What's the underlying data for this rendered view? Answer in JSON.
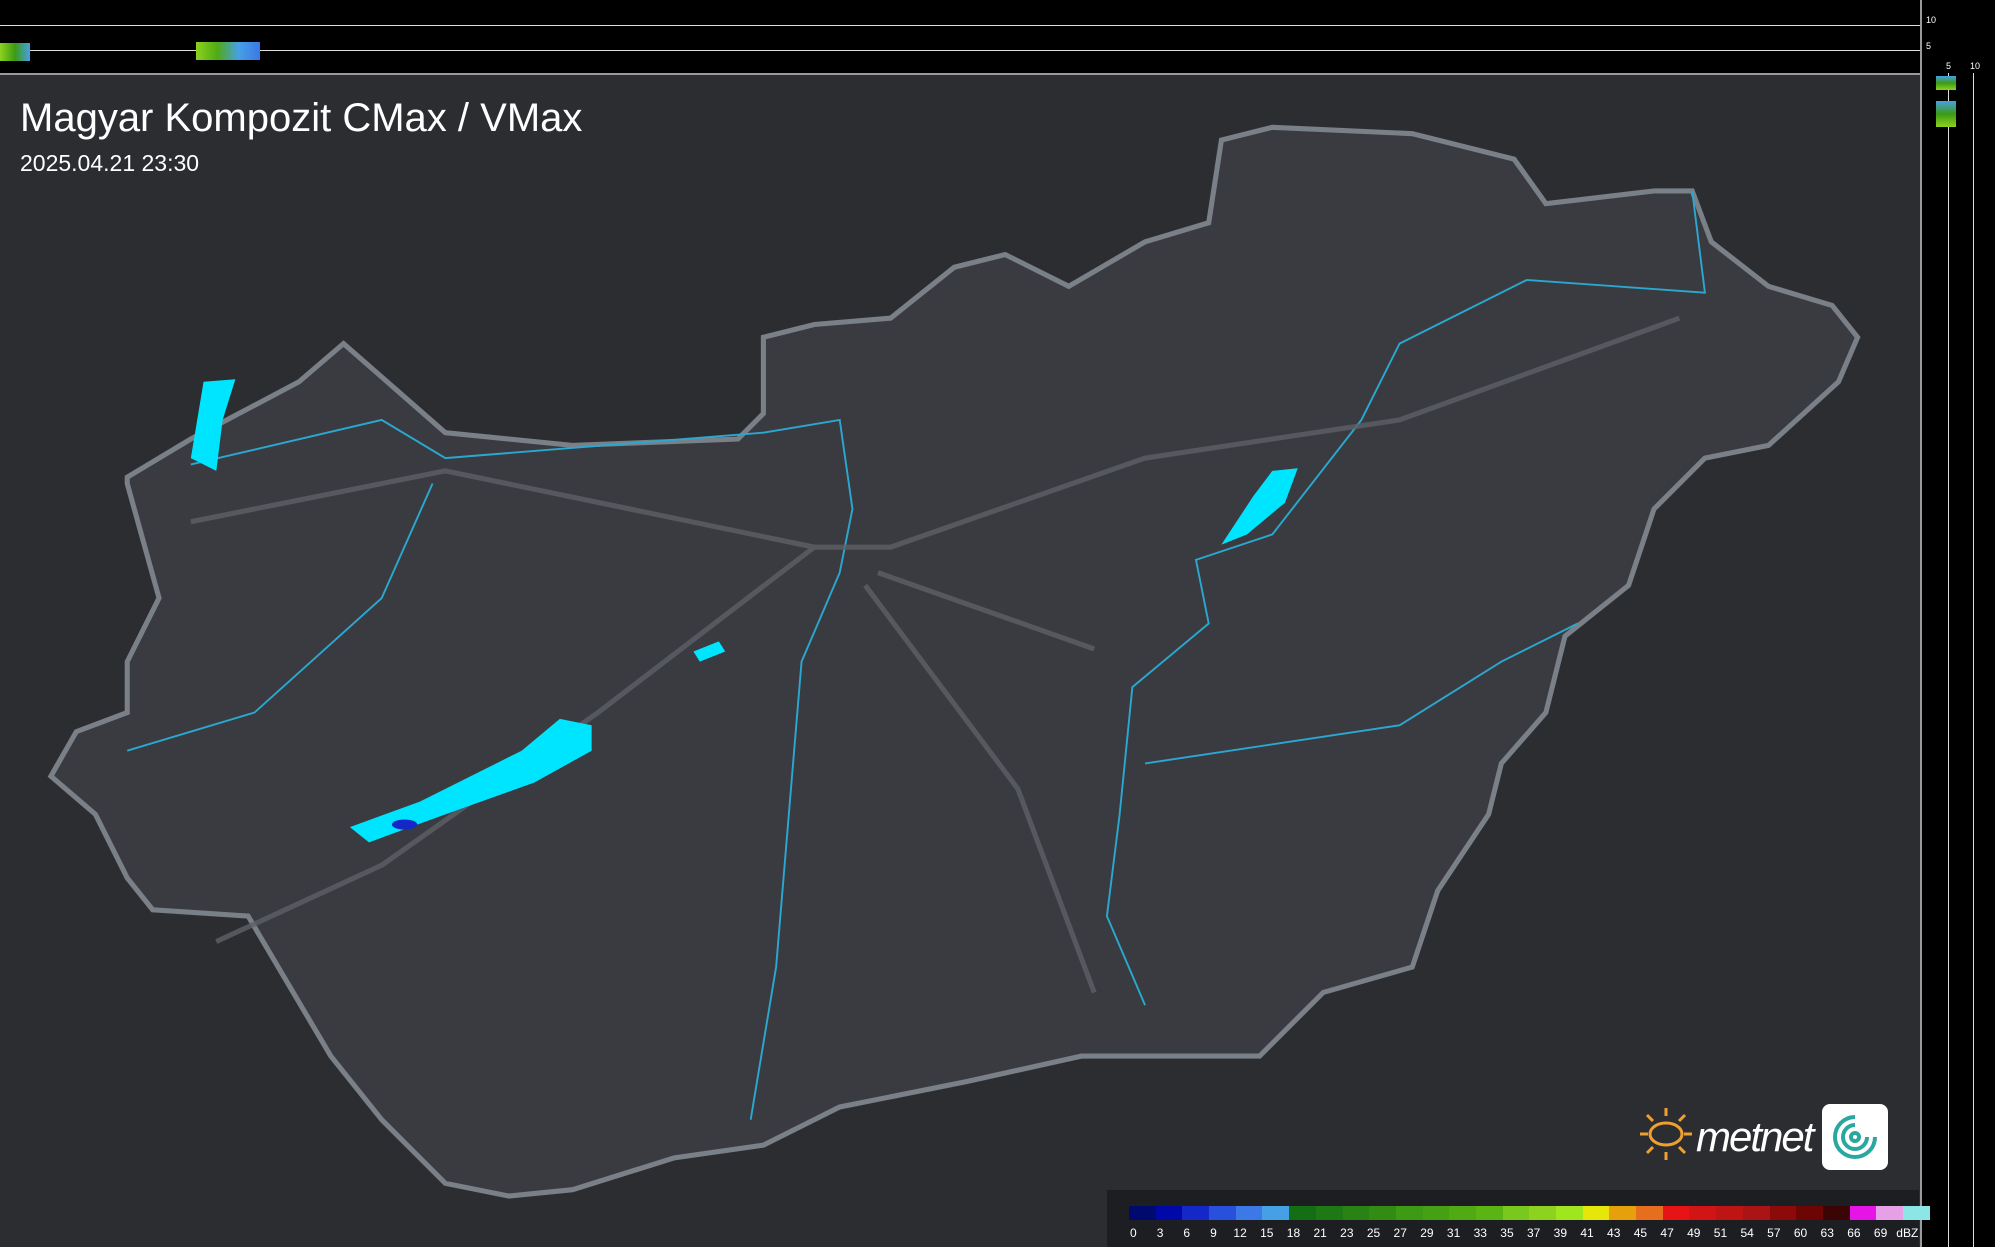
{
  "header": {
    "title": "Magyar Kompozit CMax / VMax",
    "timestamp": "2025.04.21 23:30"
  },
  "side_profiles": {
    "top_ticks": [
      "10",
      "5"
    ],
    "right_ticks": [
      "5",
      "10"
    ]
  },
  "legend": {
    "unit": "dBZ",
    "labels": [
      "0",
      "3",
      "6",
      "9",
      "12",
      "15",
      "18",
      "21",
      "23",
      "25",
      "27",
      "29",
      "31",
      "33",
      "35",
      "37",
      "39",
      "41",
      "43",
      "45",
      "47",
      "49",
      "51",
      "54",
      "57",
      "60",
      "63",
      "66",
      "69"
    ],
    "colors": [
      "#000a6e",
      "#0008a8",
      "#1428c8",
      "#2850dc",
      "#3c78e6",
      "#46a0e6",
      "#146e14",
      "#1e7814",
      "#288214",
      "#328c14",
      "#3c9a14",
      "#46a014",
      "#50aa14",
      "#5ab414",
      "#78c81e",
      "#8cd21e",
      "#a0e61e",
      "#e6e60a",
      "#e6a00a",
      "#e66e1e",
      "#e61414",
      "#d21414",
      "#be1414",
      "#aa1414",
      "#8c0a0a",
      "#6e0505",
      "#3c0505",
      "#e614e6",
      "#e6a0e6",
      "#8ce6e6"
    ]
  },
  "colors": {
    "border": "#7a8088",
    "rivers": "#2aa8d0",
    "lakes": "#00e5ff",
    "map_bg": "#2c2d31",
    "country": "#3a3b40"
  },
  "logo": {
    "text": "metnet"
  }
}
